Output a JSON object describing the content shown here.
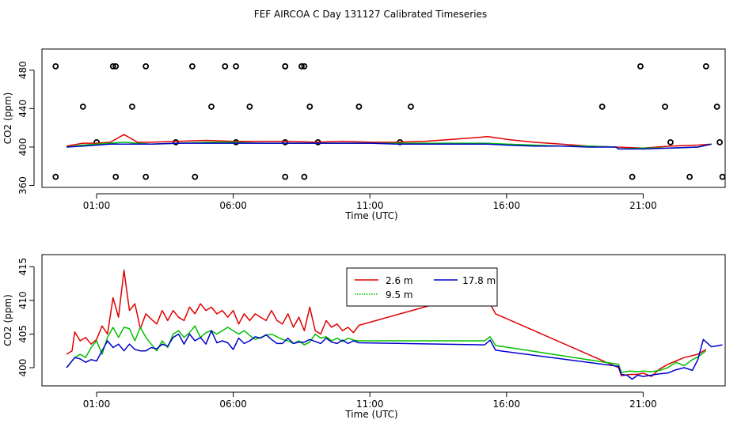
{
  "title": "FEF AIRCOA C  Day 131127  Calibrated Timeseries",
  "colors": {
    "s2_6": "#e00000",
    "s9_5": "#00c000",
    "s17_8": "#0000cc",
    "flag": "#000000"
  },
  "chart_data": [
    {
      "type": "line",
      "name": "top",
      "xlabel": "Time (UTC)",
      "ylabel": "CO2 (ppm)",
      "x_unit": "hours UTC",
      "xlim": [
        -1,
        24
      ],
      "ylim": [
        358,
        502
      ],
      "xticks": [
        1,
        6,
        11,
        16,
        21
      ],
      "xtick_labels": [
        "01:00",
        "06:00",
        "11:00",
        "16:00",
        "21:00"
      ],
      "yticks": [
        360,
        400,
        440,
        480
      ],
      "ytick_labels": [
        "360",
        "400",
        "440",
        "480"
      ],
      "series": [
        {
          "name": "2.6 m",
          "color": "#e00000",
          "x": [
            -0.1,
            0.5,
            1,
            1.5,
            2,
            2.5,
            3,
            4,
            5,
            6,
            7,
            8,
            9,
            10,
            11,
            12,
            13,
            14,
            15,
            15.3,
            16,
            17,
            18,
            19,
            20,
            21,
            22,
            23,
            23.5
          ],
          "y": [
            401,
            404,
            404,
            405,
            413,
            405,
            405,
            406,
            407,
            406,
            406,
            406,
            405,
            406,
            405,
            405,
            406,
            408,
            410,
            411,
            408,
            405,
            403,
            401,
            400,
            399,
            401,
            402,
            403
          ]
        },
        {
          "name": "9.5 m",
          "color": "#00c000",
          "x": [
            -0.1,
            0.5,
            1,
            1.5,
            2,
            2.5,
            3,
            4,
            5,
            6,
            7,
            8,
            9,
            10,
            11,
            12,
            13,
            14,
            15,
            15.3,
            16,
            17,
            18,
            19,
            20,
            20.1,
            21,
            22,
            23,
            23.5
          ],
          "y": [
            400,
            402,
            403,
            404,
            405,
            404,
            403,
            404,
            405,
            405,
            404,
            404,
            404,
            404,
            404,
            404,
            404,
            404,
            404,
            404,
            403,
            402,
            401,
            401,
            400,
            398,
            399,
            399,
            400,
            403
          ]
        },
        {
          "name": "17.8 m",
          "color": "#0000cc",
          "x": [
            -0.1,
            0.5,
            1,
            1.5,
            2,
            2.5,
            3,
            4,
            5,
            6,
            7,
            8,
            9,
            10,
            11,
            12,
            13,
            14,
            15,
            15.3,
            16,
            17,
            18,
            19,
            20,
            20.1,
            21,
            22,
            23,
            23.5
          ],
          "y": [
            400,
            401,
            402,
            403,
            403,
            403,
            403,
            404,
            404,
            404,
            404,
            404,
            404,
            404,
            404,
            403,
            403,
            403,
            403,
            403,
            402,
            401,
            401,
            400,
            400,
            398,
            398,
            399,
            400,
            403
          ]
        }
      ],
      "flags": {
        "x": [
          1.6,
          4.5,
          5.7,
          7.9,
          8.5,
          20.9,
          23.3,
          0.5,
          2.3,
          5.2,
          6.6,
          8.8,
          10.6,
          12.5,
          19.5,
          21.8,
          23.7,
          -0.5,
          1.7,
          2.8,
          6.1,
          7.9,
          8.6,
          1,
          3.9,
          6.1,
          7.9,
          9.1,
          12.1,
          22,
          23.8,
          -0.5,
          1.7,
          2.8,
          4.6,
          7.9,
          8.6,
          20.6,
          22.7,
          23.9
        ],
        "y": [
          484,
          484,
          484,
          484,
          484,
          484,
          484,
          442,
          442,
          442,
          442,
          442,
          442,
          442,
          442,
          442,
          442,
          484,
          484,
          484,
          484,
          484,
          484,
          405,
          405,
          405,
          405,
          405,
          405,
          405,
          405,
          369,
          369,
          369,
          369,
          369,
          369,
          369,
          369,
          369
        ]
      }
    },
    {
      "type": "line",
      "name": "bottom",
      "xlabel": "Time (UTC)",
      "ylabel": "CO2 (ppm)",
      "x_unit": "hours UTC",
      "xlim": [
        -1,
        24
      ],
      "ylim": [
        397.3,
        416.8
      ],
      "xticks": [
        1,
        6,
        11,
        16,
        21
      ],
      "xtick_labels": [
        "01:00",
        "06:00",
        "11:00",
        "16:00",
        "21:00"
      ],
      "yticks": [
        400,
        405,
        410,
        415
      ],
      "ytick_labels": [
        "400",
        "405",
        "410",
        "415"
      ],
      "legend": {
        "entries": [
          "2.6 m",
          "9.5 m",
          "17.8 m"
        ]
      },
      "series": [
        {
          "name": "2.6 m",
          "color": "#e00000",
          "x": [
            -0.1,
            0.1,
            0.2,
            0.4,
            0.6,
            0.8,
            1,
            1.2,
            1.4,
            1.6,
            1.8,
            2,
            2.2,
            2.4,
            2.6,
            2.8,
            3,
            3.2,
            3.4,
            3.6,
            3.8,
            4,
            4.2,
            4.4,
            4.6,
            4.8,
            5,
            5.2,
            5.4,
            5.6,
            5.8,
            6,
            6.2,
            6.4,
            6.6,
            6.8,
            7,
            7.2,
            7.4,
            7.6,
            7.8,
            8,
            8.2,
            8.4,
            8.6,
            8.8,
            9,
            9.2,
            9.4,
            9.6,
            9.8,
            10,
            10.2,
            10.4,
            10.6,
            15.2,
            15.4,
            15.6,
            20.1,
            20.2,
            20.5,
            20.8,
            21,
            21.3,
            21.6,
            21.9,
            22.2,
            22.5,
            22.8,
            23,
            23.3
          ],
          "y": [
            402,
            402.5,
            405.3,
            404,
            404.5,
            403.5,
            404.2,
            406.2,
            405,
            410.4,
            407.5,
            414.5,
            408.5,
            409.5,
            405.8,
            408,
            407.2,
            406.5,
            408.5,
            407,
            408.5,
            407.5,
            407,
            409,
            408,
            409.5,
            408.5,
            409,
            408,
            408.5,
            407.5,
            408.5,
            406.5,
            408,
            407,
            408,
            407.5,
            407,
            408.5,
            407,
            406.5,
            408,
            406,
            407.5,
            405.5,
            409,
            405.5,
            405,
            407,
            406,
            406.5,
            405.5,
            406,
            405.2,
            406.3,
            411.5,
            409.5,
            408,
            400,
            398.8,
            399,
            399,
            399.2,
            398.7,
            399.8,
            400.5,
            401,
            401.5,
            401.8,
            402,
            402.7
          ]
        },
        {
          "name": "9.5 m",
          "color": "#00c000",
          "x": [
            -0.1,
            0.2,
            0.4,
            0.6,
            0.8,
            1,
            1.2,
            1.4,
            1.6,
            1.8,
            2,
            2.2,
            2.4,
            2.6,
            2.8,
            3,
            3.2,
            3.4,
            3.6,
            3.8,
            4,
            4.2,
            4.4,
            4.6,
            4.8,
            5,
            5.2,
            5.4,
            5.6,
            5.8,
            6,
            6.2,
            6.4,
            6.6,
            6.8,
            7,
            7.2,
            7.4,
            7.6,
            7.8,
            8,
            8.2,
            8.4,
            8.6,
            8.8,
            9,
            9.2,
            9.4,
            9.6,
            9.8,
            10,
            10.2,
            10.4,
            10.6,
            15.2,
            15.4,
            15.6,
            20.1,
            20.2,
            20.5,
            20.8,
            21,
            21.3,
            21.6,
            21.9,
            22.2,
            22.5,
            22.8,
            23,
            23.3
          ],
          "y": [
            400,
            401.5,
            402,
            401.5,
            403,
            404,
            402,
            404.5,
            406,
            404.5,
            406,
            405.8,
            404,
            406,
            404.5,
            403.5,
            402.5,
            404,
            403,
            405,
            405.5,
            404.5,
            405.2,
            406.2,
            404.5,
            405.2,
            405.5,
            405,
            405.5,
            406,
            405.5,
            405,
            405.5,
            404.8,
            404.2,
            404.5,
            404.8,
            405,
            404.6,
            404.2,
            404,
            403.6,
            404,
            403.4,
            403.8,
            405,
            404.4,
            404.6,
            404,
            404.4,
            403.9,
            404.4,
            404.1,
            404,
            404,
            404.6,
            403.3,
            400.5,
            399.3,
            399.5,
            399.4,
            399.5,
            399.4,
            399.6,
            400,
            400.8,
            400.3,
            401.2,
            401.6,
            402.5
          ]
        },
        {
          "name": "17.8 m",
          "color": "#0000cc",
          "x": [
            -0.1,
            0.2,
            0.4,
            0.6,
            0.8,
            1,
            1.2,
            1.4,
            1.6,
            1.8,
            2,
            2.2,
            2.4,
            2.6,
            2.8,
            3,
            3.2,
            3.4,
            3.6,
            3.8,
            4,
            4.2,
            4.4,
            4.6,
            4.8,
            5,
            5.2,
            5.4,
            5.6,
            5.8,
            6,
            6.2,
            6.4,
            6.6,
            6.8,
            7,
            7.2,
            7.4,
            7.6,
            7.8,
            8,
            8.2,
            8.4,
            8.6,
            8.8,
            9,
            9.2,
            9.4,
            9.6,
            9.8,
            10,
            10.2,
            10.4,
            10.6,
            15.2,
            15.4,
            15.6,
            20.1,
            20.2,
            20.4,
            20.6,
            20.8,
            21,
            21.3,
            21.6,
            21.9,
            22.2,
            22.5,
            22.8,
            23,
            23.2,
            23.5,
            23.9
          ],
          "y": [
            400,
            401.5,
            401.3,
            400.8,
            401.2,
            401,
            402.5,
            404,
            403,
            403.5,
            402.5,
            403.5,
            402.7,
            402.5,
            402.5,
            403,
            402.8,
            403.5,
            403.2,
            404.5,
            405,
            403.5,
            405,
            404,
            404.5,
            403.5,
            405.5,
            403.7,
            404,
            403.7,
            402.7,
            404.4,
            403.6,
            404,
            404.6,
            404.4,
            404.9,
            404.2,
            403.6,
            403.6,
            404.4,
            403.6,
            403.8,
            403.8,
            404.2,
            403.9,
            403.6,
            404.4,
            403.8,
            403.6,
            404.1,
            403.6,
            404,
            403.7,
            403.4,
            404.1,
            402.6,
            400.2,
            399,
            398.9,
            398.3,
            398.9,
            398.7,
            398.9,
            399.1,
            399.2,
            399.7,
            400,
            399.6,
            401.2,
            404.2,
            403.1,
            403.4
          ]
        }
      ]
    }
  ]
}
